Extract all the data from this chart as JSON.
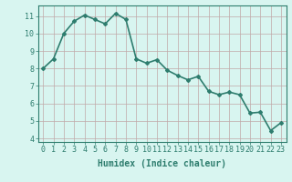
{
  "x": [
    0,
    1,
    2,
    3,
    4,
    5,
    6,
    7,
    8,
    9,
    10,
    11,
    12,
    13,
    14,
    15,
    16,
    17,
    18,
    19,
    20,
    21,
    22,
    23
  ],
  "y": [
    8.0,
    8.55,
    10.0,
    10.7,
    11.05,
    10.8,
    10.55,
    11.15,
    10.8,
    8.55,
    8.3,
    8.5,
    7.9,
    7.6,
    7.35,
    7.55,
    6.7,
    6.5,
    6.65,
    6.5,
    5.45,
    5.5,
    4.45,
    4.9
  ],
  "line_color": "#2e7d6e",
  "marker": "D",
  "marker_size": 2,
  "background_color": "#d8f5f0",
  "grid_color": "#c0a8a8",
  "xlabel": "Humidex (Indice chaleur)",
  "xlim": [
    -0.5,
    23.5
  ],
  "ylim": [
    3.8,
    11.6
  ],
  "yticks": [
    4,
    5,
    6,
    7,
    8,
    9,
    10,
    11
  ],
  "xticks": [
    0,
    1,
    2,
    3,
    4,
    5,
    6,
    7,
    8,
    9,
    10,
    11,
    12,
    13,
    14,
    15,
    16,
    17,
    18,
    19,
    20,
    21,
    22,
    23
  ],
  "tick_label_color": "#2e7d6e",
  "axis_color": "#2e7d6e",
  "xlabel_fontsize": 7,
  "tick_fontsize": 6,
  "linewidth": 1.2
}
